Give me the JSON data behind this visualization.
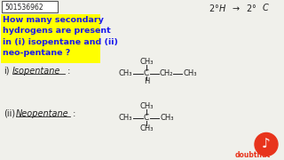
{
  "bg_color": "#f0f0eb",
  "id_box_text": "501536962",
  "id_box_color": "#ffffff",
  "id_box_border": "#555555",
  "top_right_text": "2° H  →  2°C",
  "question_text": "How many secondary\nhydrogens are present\nin (i) isopentane and (ii)\nneo-pentane ?",
  "question_highlight": "#ffff00",
  "question_color": "#1a1aee",
  "part_i_label": "i)   Isopentane :",
  "part_ii_label": "(ii)   Neopentane :",
  "doubtnut_color": "#e8341c",
  "font_color": "#222222"
}
